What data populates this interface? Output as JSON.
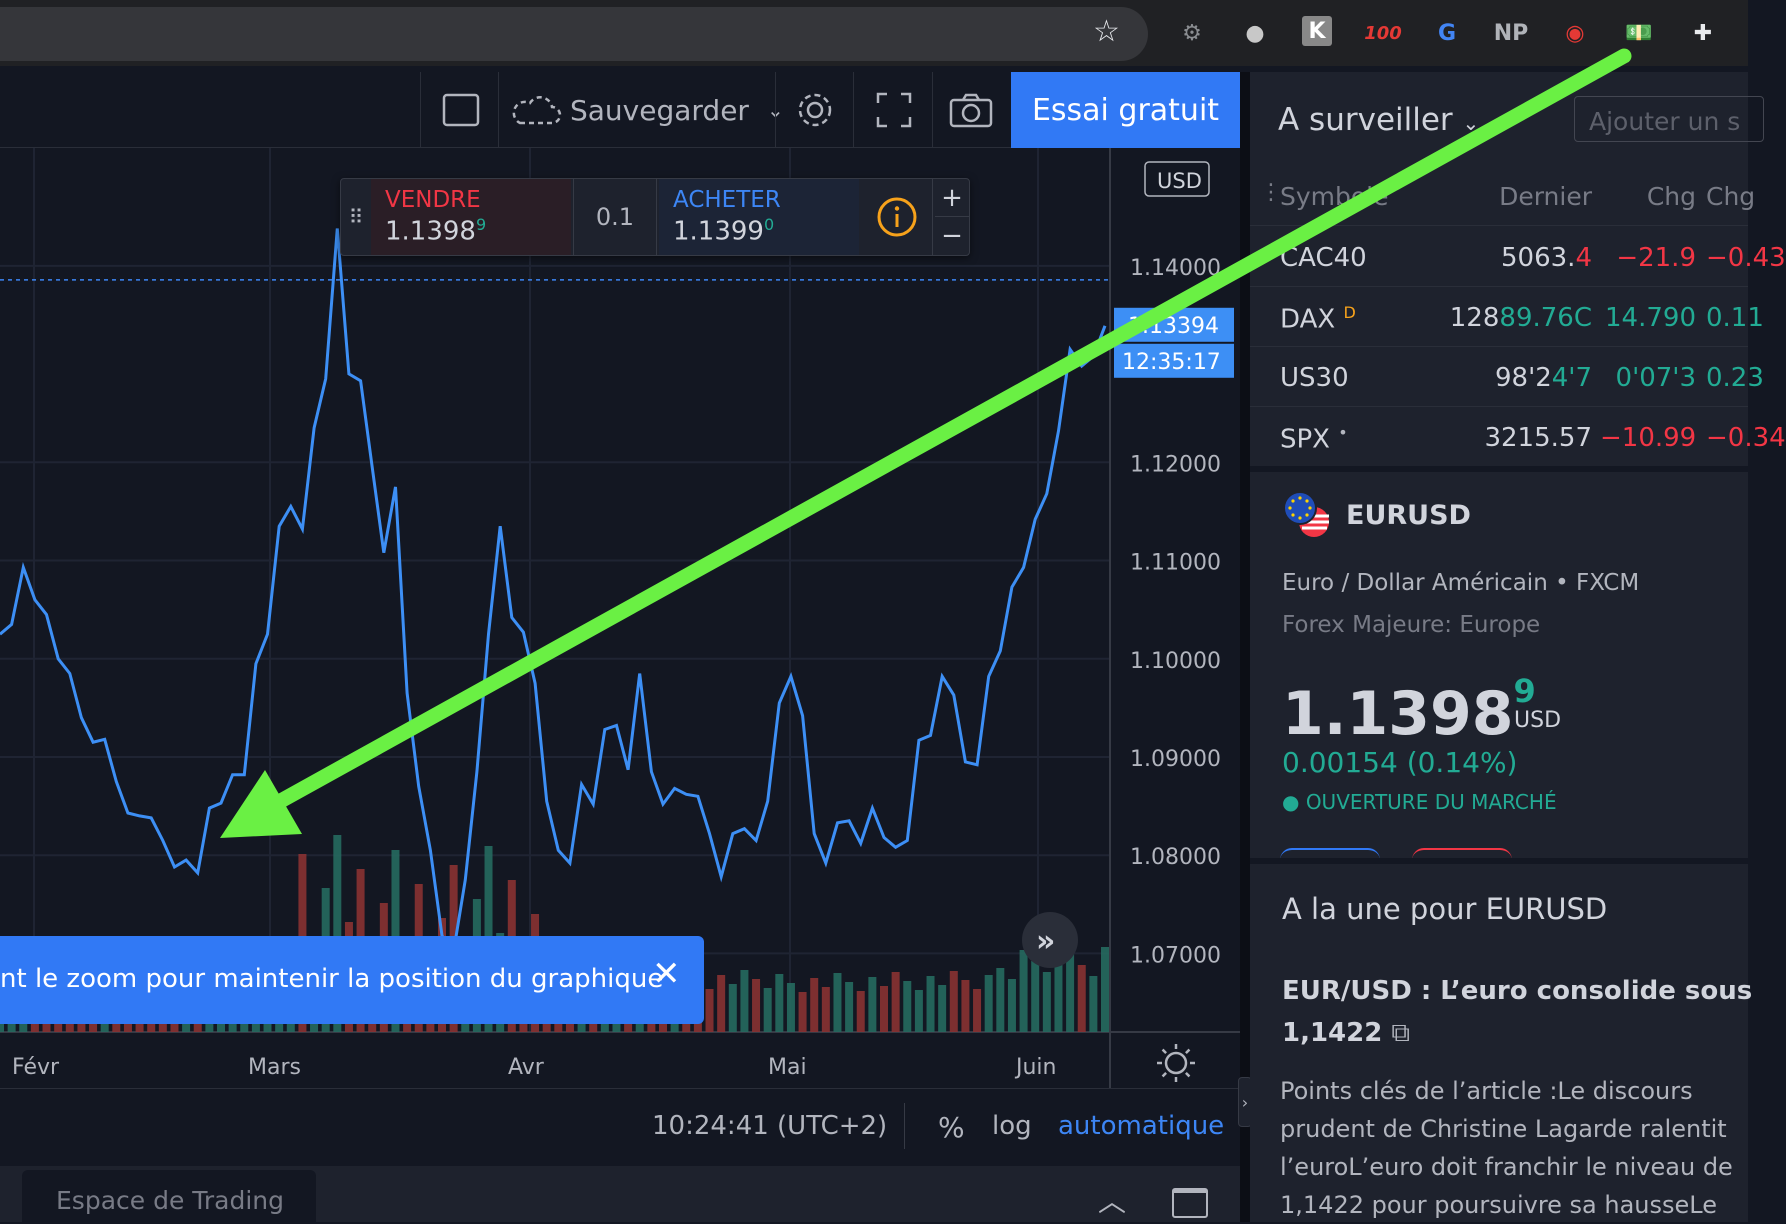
{
  "browser": {
    "extensions": [
      {
        "name": "gear-extension",
        "glyph": "⚙",
        "color": "#8a8d91"
      },
      {
        "name": "ghost-extension",
        "glyph": "●",
        "color": "#c8c8c8"
      },
      {
        "name": "k-extension",
        "glyph": "K",
        "color": "#ffffff"
      },
      {
        "name": "hundred-extension",
        "glyph": "100",
        "color": "#e53935"
      },
      {
        "name": "google-translate-extension",
        "glyph": "G",
        "color": "#4285f4"
      },
      {
        "name": "np-extension",
        "glyph": "NP",
        "color": "#b0b3b8"
      },
      {
        "name": "audio-extension",
        "glyph": "◉",
        "color": "#e53935"
      },
      {
        "name": "money-extension",
        "glyph": "💵",
        "color": "#9e9e9e"
      },
      {
        "name": "puzzle-extension",
        "glyph": "✚",
        "color": "#e8eaed"
      }
    ]
  },
  "toolbar": {
    "save_label": "Sauvegarder",
    "trial_label": "Essai gratuit"
  },
  "order": {
    "sell_label": "VENDRE",
    "sell_price": "1.1398",
    "sell_sup": "9",
    "qty": "0.1",
    "buy_label": "ACHETER",
    "buy_price": "1.1399",
    "buy_sup": "0",
    "plus": "+",
    "minus": "−"
  },
  "chart": {
    "currency_badge": "USD",
    "current_price": "1.13394",
    "countdown": "12:35:17",
    "price_ticks": [
      "1.14000",
      "1.12000",
      "1.11000",
      "1.10000",
      "1.09000",
      "1.08000",
      "1.07000"
    ],
    "months": [
      "Févr",
      "Mars",
      "Avr",
      "Mai",
      "Juin"
    ],
    "toast_text": "nt le zoom pour maintenir la position du graphique",
    "status_time": "10:24:41 (UTC+2)",
    "status_pct": "%",
    "status_log": "log",
    "status_auto": "automatique",
    "bottom_tab": "Espace de Trading"
  },
  "chart_data": {
    "type": "line",
    "x_months": [
      "Févr",
      "Mars",
      "Avr",
      "Mai",
      "Juin"
    ],
    "ylim": [
      1.062,
      1.152
    ],
    "price_series": [
      1.1025,
      1.1035,
      1.1093,
      1.106,
      1.1045,
      1.1,
      1.0985,
      1.094,
      1.0915,
      1.0918,
      1.0875,
      1.0843,
      1.084,
      1.0838,
      1.0815,
      1.0788,
      1.0795,
      1.0782,
      1.0848,
      1.0853,
      1.0882,
      1.0882,
      1.0995,
      1.1025,
      1.1135,
      1.1155,
      1.1132,
      1.1235,
      1.1285,
      1.1438,
      1.129,
      1.1283,
      1.1195,
      1.1108,
      1.1175,
      1.0965,
      1.087,
      1.0805,
      1.0718,
      1.0702,
      1.0775,
      1.0885,
      1.1025,
      1.1135,
      1.1042,
      1.1027,
      1.0975,
      1.0855,
      1.0805,
      1.0792,
      1.0872,
      1.0852,
      1.0928,
      1.0932,
      1.0887,
      1.0985,
      1.0885,
      1.0852,
      1.0868,
      1.0862,
      1.086,
      1.0822,
      1.0778,
      1.0822,
      1.0827,
      1.0815,
      1.0855,
      1.0955,
      1.0982,
      1.0942,
      1.0822,
      1.0792,
      1.0833,
      1.0835,
      1.0812,
      1.0848,
      1.0818,
      1.0808,
      1.0815,
      1.0917,
      1.0922,
      1.0982,
      1.0963,
      1.0895,
      1.0892,
      1.0982,
      1.1008,
      1.1073,
      1.1093,
      1.1142,
      1.1168,
      1.1232,
      1.1315,
      1.1298,
      1.1308,
      1.1339
    ]
  },
  "watchlist": {
    "title": "A surveiller",
    "add_placeholder": "Ajouter un s",
    "headers": {
      "symbol": "Symbole",
      "last": "Dernier",
      "chg": "Chg",
      "chgp": "Chg"
    },
    "rows": [
      {
        "symbol": "CAC40",
        "last_a": "5063.",
        "last_b": "4",
        "chg": "−21.9",
        "chgp": "−0.43",
        "dir": "down",
        "tag": ""
      },
      {
        "symbol": "DAX",
        "last_a": "128",
        "last_b": "89.76C",
        "chg": "14.790",
        "chgp": "0.11",
        "dir": "up",
        "tag": "D"
      },
      {
        "symbol": "US30",
        "last_a": "98'2",
        "last_b": "4'7",
        "chg": "0'07'3",
        "chgp": "0.23",
        "dir": "up",
        "tag": ""
      },
      {
        "symbol": "SPX",
        "last_a": "3215.57",
        "last_b": "",
        "chg": "−10.99",
        "chgp": "−0.34",
        "dir": "down",
        "tag": "•"
      }
    ]
  },
  "details": {
    "symbol": "EURUSD",
    "description": "Euro / Dollar Américain",
    "exchange": "FXCM",
    "category": "Forex Majeure: Europe",
    "price": "1.1398",
    "price_sup": "9",
    "currency": "USD",
    "change": "0.00154 (0.14%)",
    "market_status": "OUVERTURE DU MARCHÉ"
  },
  "news": {
    "section_title": "A la une pour EURUSD",
    "headline_line1": "EUR/USD : L’euro consolide sous",
    "headline_line2": "1,1422",
    "body_lines": [
      "Points clés de l’article :Le discours",
      "prudent de Christine Lagarde ralentit",
      "l’euroL’euro doit franchir le niveau de",
      "1,1422 pour poursuivre sa hausseLe"
    ]
  }
}
